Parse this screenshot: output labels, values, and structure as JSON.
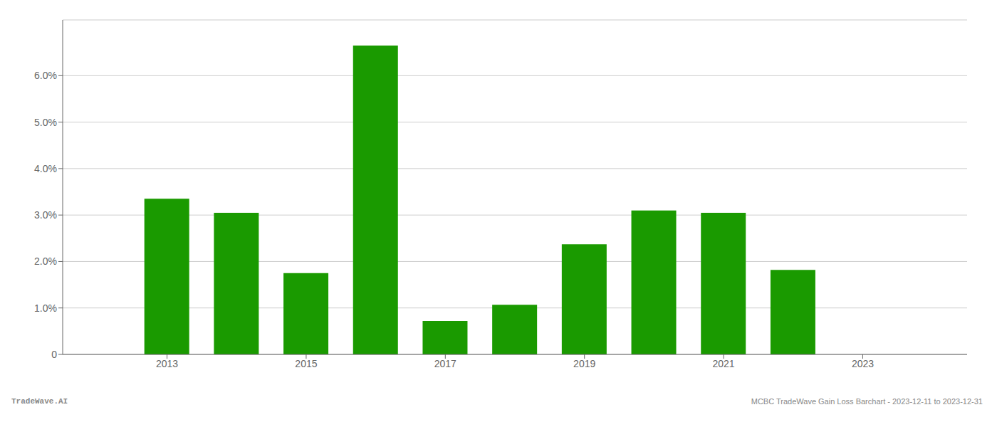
{
  "chart_data": {
    "type": "bar",
    "x": [
      2013,
      2014,
      2015,
      2016,
      2017,
      2018,
      2019,
      2020,
      2021,
      2022,
      2023
    ],
    "values": [
      0.0335,
      0.0305,
      0.0175,
      0.0665,
      0.0072,
      0.0107,
      0.0237,
      0.031,
      0.0305,
      0.0182,
      0.0
    ],
    "color": "#1a9a00",
    "ylim": [
      0.0,
      0.072
    ],
    "yticks": [
      0,
      {
        "value": 0.01,
        "label": "1.0%"
      },
      {
        "value": 0.02,
        "label": "2.0%"
      },
      {
        "value": 0.03,
        "label": "3.0%"
      },
      {
        "value": 0.04,
        "label": "4.0%"
      },
      {
        "value": 0.05,
        "label": "5.0%"
      },
      {
        "value": 0.06,
        "label": "6.0%"
      }
    ],
    "xlim": [
      2011.5,
      2024.5
    ],
    "xticks": [
      2013,
      2015,
      2017,
      2019,
      2021,
      2023
    ],
    "grid": true,
    "annotations": [
      "TradeWave.AI",
      "MCBC TradeWave Gain Loss Barchart - 2023-12-11 to 2023-12-31"
    ]
  }
}
